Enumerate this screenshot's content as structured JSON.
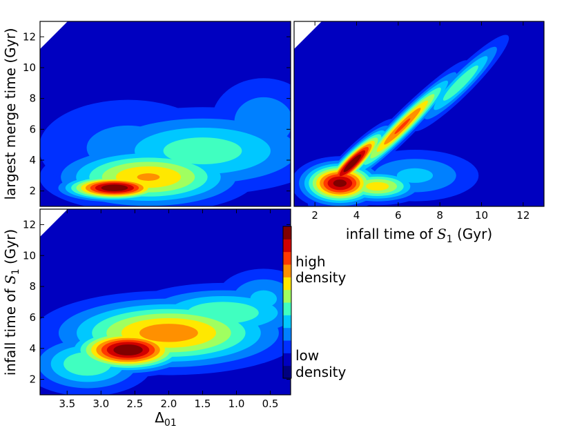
{
  "chart_data": [
    {
      "type": "heatmap",
      "panel": "top-left",
      "xlabel": "",
      "ylabel": "largest merge time (Gyr)",
      "x_variable": "Δ01",
      "xlim": [
        3.9,
        0.2
      ],
      "ylim": [
        1.0,
        13.0
      ],
      "x_axis_reversed": true,
      "xticks": [],
      "yticks": [
        2,
        4,
        6,
        8,
        10,
        12
      ],
      "peak": {
        "x": 2.85,
        "y": 2.0
      },
      "density_clouds": [
        {
          "x": 2.8,
          "y": 2.2,
          "sx": 0.5,
          "sy": 0.55,
          "w": 1.0,
          "rot": 0
        },
        {
          "x": 2.3,
          "y": 2.9,
          "sx": 0.9,
          "sy": 1.3,
          "w": 0.65,
          "rot": 0
        },
        {
          "x": 1.5,
          "y": 4.6,
          "sx": 1.2,
          "sy": 1.8,
          "w": 0.42,
          "rot": 0
        },
        {
          "x": 0.6,
          "y": 6.5,
          "sx": 0.6,
          "sy": 2.2,
          "w": 0.25,
          "rot": 0
        },
        {
          "x": 2.6,
          "y": 4.8,
          "sx": 1.1,
          "sy": 2.6,
          "w": 0.22,
          "rot": 0
        }
      ]
    },
    {
      "type": "heatmap",
      "panel": "top-right",
      "xlabel": "infall time of S1 (Gyr)",
      "ylabel": "",
      "xlim": [
        1.0,
        13.0
      ],
      "ylim": [
        1.0,
        13.0
      ],
      "xticks": [
        2,
        4,
        6,
        8,
        10,
        12
      ],
      "yticks": [],
      "peak": {
        "x": 3.5,
        "y": 3.8
      },
      "density_clouds": [
        {
          "x": 3.2,
          "y": 2.5,
          "sx": 1.2,
          "sy": 0.9,
          "w": 0.95,
          "rot": 0
        },
        {
          "x": 5.0,
          "y": 2.3,
          "sx": 1.4,
          "sy": 0.7,
          "w": 0.6,
          "rot": 0
        },
        {
          "x": 3.8,
          "y": 3.8,
          "sx": 1.5,
          "sy": 0.45,
          "w": 1.0,
          "rot": 45
        },
        {
          "x": 6.2,
          "y": 6.2,
          "sx": 2.4,
          "sy": 0.45,
          "w": 0.75,
          "rot": 45
        },
        {
          "x": 9.0,
          "y": 9.0,
          "sx": 2.0,
          "sy": 0.5,
          "w": 0.45,
          "rot": 45
        },
        {
          "x": 6.8,
          "y": 3.0,
          "sx": 2.2,
          "sy": 1.2,
          "w": 0.3,
          "rot": 0
        }
      ]
    },
    {
      "type": "heatmap",
      "panel": "bottom-left",
      "xlabel": "Δ01",
      "ylabel": "infall time of S1 (Gyr)",
      "xlim": [
        3.9,
        0.2
      ],
      "ylim": [
        1.0,
        13.0
      ],
      "x_axis_reversed": true,
      "xticks": [
        3.5,
        3.0,
        2.5,
        2.0,
        1.5,
        1.0,
        0.5
      ],
      "yticks": [
        2,
        4,
        6,
        8,
        10,
        12
      ],
      "peak": {
        "x": 2.7,
        "y": 3.8
      },
      "density_clouds": [
        {
          "x": 2.6,
          "y": 3.9,
          "sx": 0.55,
          "sy": 0.9,
          "w": 1.0,
          "rot": 0
        },
        {
          "x": 2.0,
          "y": 5.0,
          "sx": 1.1,
          "sy": 1.5,
          "w": 0.7,
          "rot": 0
        },
        {
          "x": 1.2,
          "y": 6.3,
          "sx": 0.9,
          "sy": 1.2,
          "w": 0.45,
          "rot": 0
        },
        {
          "x": 3.2,
          "y": 3.0,
          "sx": 0.6,
          "sy": 1.3,
          "w": 0.45,
          "rot": 0
        },
        {
          "x": 0.6,
          "y": 7.2,
          "sx": 0.5,
          "sy": 1.4,
          "w": 0.3,
          "rot": 0
        }
      ]
    }
  ],
  "colorbar": {
    "high_label_line1": "high",
    "high_label_line2": "density",
    "low_label_line1": "low",
    "low_label_line2": "density",
    "levels": [
      "#000080",
      "#0000c0",
      "#0030ff",
      "#0080ff",
      "#00c8ff",
      "#40ffc0",
      "#a0ff60",
      "#ffe800",
      "#ff9000",
      "#ff3800",
      "#d00000",
      "#800000"
    ]
  }
}
